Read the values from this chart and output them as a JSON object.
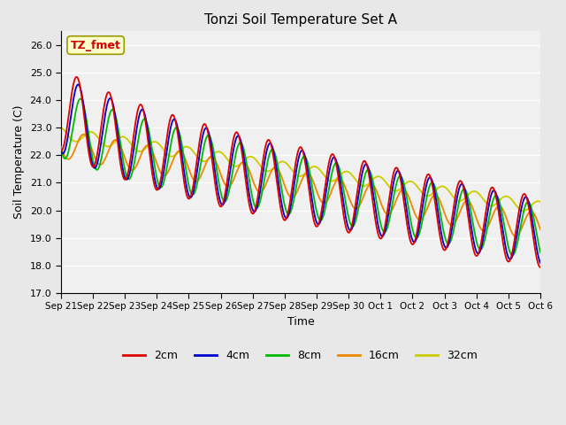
{
  "title": "Tonzi Soil Temperature Set A",
  "xlabel": "Time",
  "ylabel": "Soil Temperature (C)",
  "annotation": "TZ_fmet",
  "annotation_color": "#cc0000",
  "annotation_bg": "#ffffcc",
  "annotation_border": "#999900",
  "ylim": [
    17.0,
    26.5
  ],
  "yticks": [
    17.0,
    18.0,
    19.0,
    20.0,
    21.0,
    22.0,
    23.0,
    24.0,
    25.0,
    26.0
  ],
  "bg_color": "#e8e8e8",
  "plot_bg": "#f0f0f0",
  "grid_color": "#ffffff",
  "line_colors": {
    "2cm": "#dd0000",
    "4cm": "#0000cc",
    "8cm": "#00bb00",
    "16cm": "#ee8800",
    "32cm": "#cccc00"
  },
  "legend_labels": [
    "2cm",
    "4cm",
    "8cm",
    "16cm",
    "32cm"
  ],
  "xtick_labels": [
    "Sep 21",
    "Sep 22",
    "Sep 23",
    "Sep 24",
    "Sep 25",
    "Sep 26",
    "Sep 27",
    "Sep 28",
    "Sep 29",
    "Sep 30",
    "Oct 1",
    "Oct 2",
    "Oct 3",
    "Oct 4",
    "Oct 5",
    "Oct 6"
  ],
  "n_days": 15,
  "samples_per_day": 48
}
